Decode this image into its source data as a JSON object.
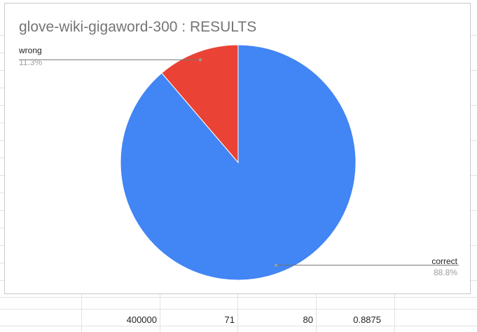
{
  "chart_data": {
    "type": "pie",
    "title": "glove-wiki-gigaword-300 : RESULTS",
    "slices": [
      {
        "label": "correct",
        "value": 71,
        "percent_label": "88.8%",
        "color": "#4285f4"
      },
      {
        "label": "wrong",
        "value": 9,
        "percent_label": "11.3%",
        "color": "#ea4335"
      }
    ],
    "legend": "none"
  },
  "sheet": {
    "row_values": [
      "400000",
      "71",
      "80",
      "0.8875"
    ]
  }
}
